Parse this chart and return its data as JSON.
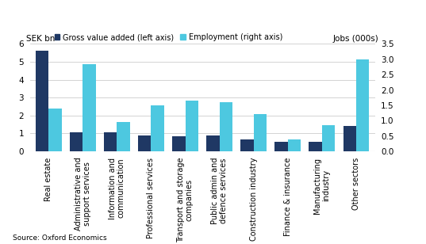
{
  "categories": [
    "Real estate",
    "Administrative and\nsupport services",
    "Information and\ncommunication",
    "Professional services",
    "Transport and storage\ncompanies",
    "Public admin and\ndefence services",
    "Construction industry",
    "Finance & insurance",
    "Manufacturing\nindustry",
    "Other sectors"
  ],
  "gva": [
    5.6,
    1.05,
    1.05,
    0.9,
    0.85,
    0.9,
    0.65,
    0.55,
    0.55,
    1.4
  ],
  "employment": [
    1.4,
    2.85,
    0.95,
    1.5,
    1.65,
    1.6,
    1.2,
    0.38,
    0.85,
    3.0
  ],
  "gva_color": "#1f3864",
  "emp_color": "#4dc8e0",
  "ylabel_left": "SEK bn",
  "ylabel_right": "Jobs (000s)",
  "ylim_left": [
    0,
    6
  ],
  "ylim_right": [
    0,
    3.5
  ],
  "yticks_left": [
    0,
    1,
    2,
    3,
    4,
    5,
    6
  ],
  "yticks_right": [
    0.0,
    0.5,
    1.0,
    1.5,
    2.0,
    2.5,
    3.0,
    3.5
  ],
  "legend_gva": "Gross value added (left axis)",
  "legend_emp": "Employment (right axis)",
  "source": "Source: Oxford Economics",
  "background_color": "#ffffff",
  "grid_color": "#cccccc"
}
